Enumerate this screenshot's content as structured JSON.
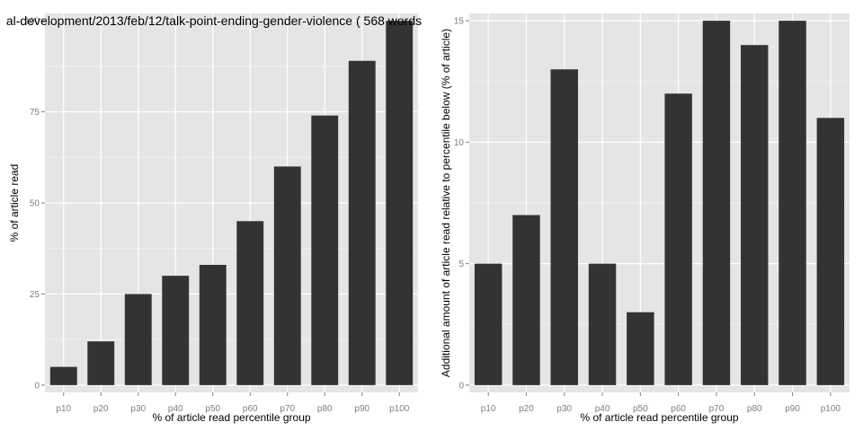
{
  "colors": {
    "panel": "#e5e5e5",
    "grid_major": "#ffffff",
    "grid_minor": "#f2f2f2",
    "bar": "#333333",
    "tick_text": "#7f7f7f",
    "tick_mark": "#7f7f7f"
  },
  "chart_data": [
    {
      "type": "bar",
      "title": "al-development/2013/feb/12/talk-point-ending-gender-violence ( 568 words",
      "xlabel": "% of article read percentile group",
      "ylabel": "% of article read",
      "categories": [
        "p10",
        "p20",
        "p30",
        "p40",
        "p50",
        "p60",
        "p70",
        "p80",
        "p90",
        "p100"
      ],
      "values": [
        5,
        12,
        25,
        30,
        33,
        45,
        60,
        74,
        89,
        100
      ],
      "ylim": [
        -2,
        102
      ],
      "yticks": [
        0,
        25,
        50,
        75,
        100
      ],
      "ytick_labels": [
        "0",
        "25",
        "50",
        "75",
        "100"
      ],
      "grid": true
    },
    {
      "type": "bar",
      "title": "",
      "xlabel": "% of article read percentile group",
      "ylabel": "Additional amount of article read relative to percentile below (% of article)",
      "categories": [
        "p10",
        "p20",
        "p30",
        "p40",
        "p50",
        "p60",
        "p70",
        "p80",
        "p90",
        "p100"
      ],
      "values": [
        5,
        7,
        13,
        5,
        3,
        12,
        15,
        14,
        15,
        11
      ],
      "ylim": [
        -0.3,
        15.3
      ],
      "yticks": [
        0,
        5,
        10,
        15
      ],
      "ytick_labels": [
        "0",
        "5",
        "10",
        "15"
      ],
      "grid": true
    }
  ]
}
